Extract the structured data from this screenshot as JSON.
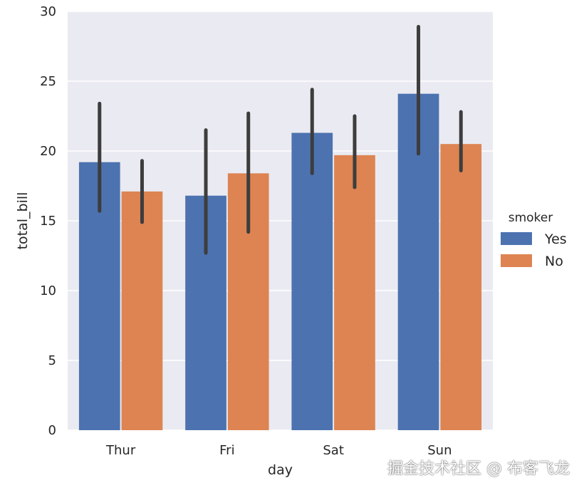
{
  "chart_data": {
    "type": "bar",
    "xlabel": "day",
    "ylabel": "total_bill",
    "categories": [
      "Thur",
      "Fri",
      "Sat",
      "Sun"
    ],
    "ylim": [
      0,
      30
    ],
    "yticks": [
      "0",
      "5",
      "10",
      "15",
      "20",
      "25",
      "30"
    ],
    "grid": true,
    "legend": {
      "title": "smoker",
      "position": "right"
    },
    "series": [
      {
        "name": "Yes",
        "color": "#4c72b0",
        "values": [
          19.2,
          16.8,
          21.3,
          24.1
        ],
        "ci_low": [
          15.7,
          12.7,
          18.4,
          19.8
        ],
        "ci_high": [
          23.4,
          21.5,
          24.4,
          28.9
        ]
      },
      {
        "name": "No",
        "color": "#dd8452",
        "values": [
          17.1,
          18.4,
          19.7,
          20.5
        ],
        "ci_low": [
          14.9,
          14.2,
          17.4,
          18.6
        ],
        "ci_high": [
          19.3,
          22.7,
          22.5,
          22.8
        ]
      }
    ],
    "colors": {
      "background": "#eaeaf2",
      "grid": "#ffffff",
      "errorbar": "#3d3d3d"
    }
  },
  "watermark": "掘金技术社区 @ 布客飞龙"
}
